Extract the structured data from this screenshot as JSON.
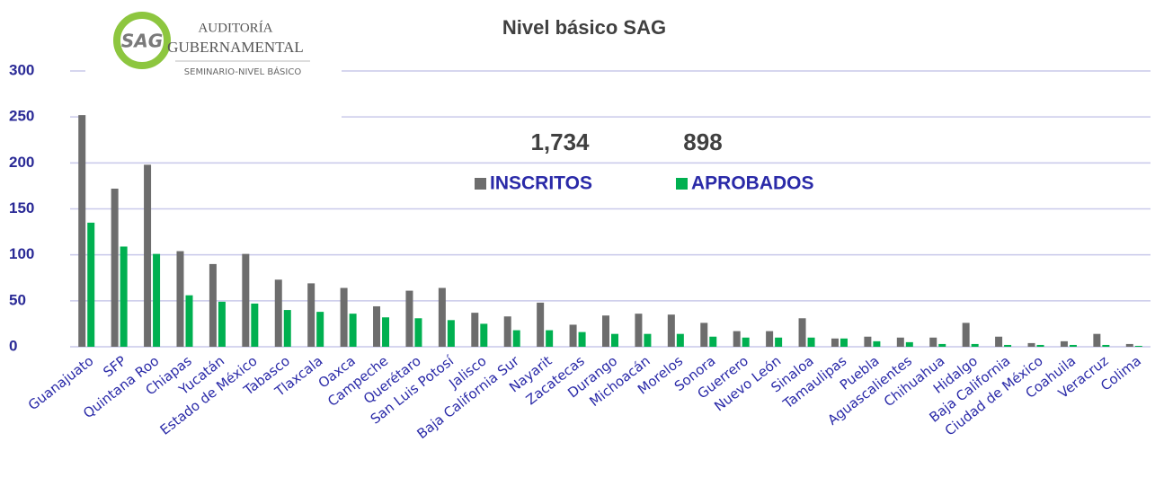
{
  "chart_data": {
    "type": "bar",
    "title": "Nivel básico SAG",
    "logo": {
      "mark": "SAG",
      "line1": "AUDITORÍA",
      "line2": "GUBERNAMENTAL",
      "line3": "SEMINARIO-NIVEL BÁSICO"
    },
    "annotations": [
      "1,734",
      "898"
    ],
    "categories": [
      "Guanajuato",
      "SFP",
      "Quintana Roo",
      "Chiapas",
      "Yucatán",
      "Estado de México",
      "Tabasco",
      "Tlaxcala",
      "Oaxca",
      "Campeche",
      "Querétaro",
      "San Luis Potosí",
      "Jalisco",
      "Baja California Sur",
      "Nayarit",
      "Zacatecas",
      "Durango",
      "Michoacán",
      "Morelos",
      "Sonora",
      "Guerrero",
      "Nuevo León",
      "Sinaloa",
      "Tamaulipas",
      "Puebla",
      "Aguascalientes",
      "Chihuahua",
      "Hidalgo",
      "Baja California",
      "Ciudad de México",
      "Coahuila",
      "Veracruz",
      "Colima"
    ],
    "series": [
      {
        "name": "INSCRITOS",
        "color": "#6d6d6d",
        "values": [
          252,
          172,
          198,
          104,
          90,
          101,
          73,
          69,
          64,
          44,
          61,
          64,
          37,
          33,
          48,
          24,
          34,
          36,
          35,
          26,
          17,
          17,
          31,
          9,
          11,
          10,
          10,
          26,
          11,
          4,
          6,
          14,
          3
        ]
      },
      {
        "name": "APROBADOS",
        "color": "#00b050",
        "values": [
          135,
          109,
          101,
          56,
          49,
          47,
          40,
          38,
          36,
          32,
          31,
          29,
          25,
          18,
          18,
          16,
          14,
          14,
          14,
          11,
          10,
          10,
          10,
          9,
          6,
          5,
          3,
          3,
          2,
          2,
          2,
          2,
          1
        ]
      }
    ],
    "ylim": [
      0,
      300
    ],
    "yticks": [
      0,
      50,
      100,
      150,
      200,
      250,
      300
    ],
    "grid": true
  }
}
